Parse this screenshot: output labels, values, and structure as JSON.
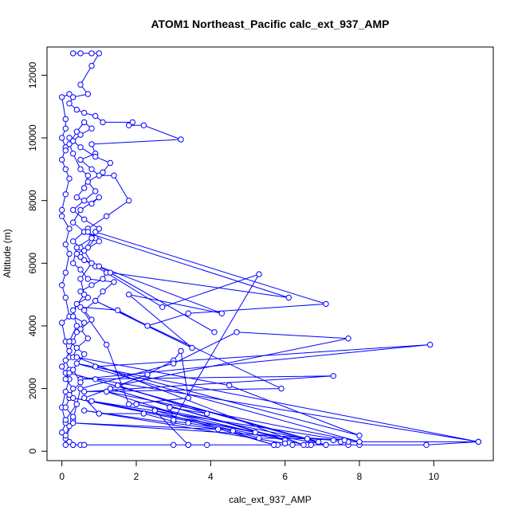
{
  "chart_data": {
    "type": "line",
    "title": "ATOM1 Northeast_Pacific calc_ext_937_AMP",
    "xlabel": "calc_ext_937_AMP",
    "ylabel": "Altitude (m)",
    "xlim": [
      -0.4,
      11.6
    ],
    "ylim": [
      -300,
      12900
    ],
    "xticks": [
      0,
      2,
      4,
      6,
      8,
      10
    ],
    "yticks": [
      0,
      2000,
      4000,
      6000,
      8000,
      10000,
      12000
    ],
    "grid": false,
    "marker": "open-circle",
    "series_color": "#0000ff",
    "series": [
      {
        "points": [
          [
            0.3,
            200
          ],
          [
            0.5,
            200
          ],
          [
            0.6,
            200
          ],
          [
            3.0,
            200
          ],
          [
            3.4,
            200
          ],
          [
            3.9,
            200
          ],
          [
            5.7,
            200
          ],
          [
            5.8,
            200
          ],
          [
            6.2,
            200
          ],
          [
            6.6,
            200
          ],
          [
            6.7,
            200
          ],
          [
            7.1,
            200
          ],
          [
            7.7,
            200
          ],
          [
            8.0,
            200
          ],
          [
            9.8,
            200
          ],
          [
            11.2,
            300
          ],
          [
            7.7,
            300
          ],
          [
            7.5,
            300
          ],
          [
            7.3,
            350
          ],
          [
            6.6,
            400
          ],
          [
            5.3,
            420
          ],
          [
            4.6,
            650
          ],
          [
            3.4,
            900
          ],
          [
            3.0,
            950
          ],
          [
            2.2,
            1200
          ],
          [
            1.0,
            1200
          ],
          [
            0.6,
            1700
          ],
          [
            1.3,
            2000
          ],
          [
            2.3,
            2450
          ],
          [
            3.0,
            2900
          ],
          [
            3.2,
            3200
          ],
          [
            3.4,
            1700
          ],
          [
            1.8,
            1500
          ],
          [
            1.2,
            3400
          ],
          [
            0.5,
            4600
          ],
          [
            1.5,
            4500
          ],
          [
            2.3,
            4000
          ],
          [
            3.4,
            4400
          ],
          [
            7.1,
            4700
          ],
          [
            0.9,
            7000
          ],
          [
            0.5,
            6200
          ],
          [
            2.7,
            4600
          ],
          [
            5.3,
            5650
          ],
          [
            3.0,
            1000
          ],
          [
            2.9,
            1400
          ],
          [
            3.9,
            1200
          ],
          [
            1.5,
            2100
          ],
          [
            7.7,
            3600
          ],
          [
            4.7,
            3800
          ],
          [
            3.0,
            2800
          ],
          [
            0.5,
            2000
          ],
          [
            0.3,
            1000
          ],
          [
            0.1,
            400
          ],
          [
            0.1,
            200
          ]
        ]
      },
      {
        "points": [
          [
            0.0,
            600
          ],
          [
            0.1,
            900
          ],
          [
            0.0,
            1400
          ],
          [
            0.1,
            1900
          ],
          [
            0.2,
            2300
          ],
          [
            0.1,
            2500
          ],
          [
            0.0,
            2700
          ],
          [
            0.2,
            3000
          ],
          [
            0.1,
            3500
          ],
          [
            0.0,
            4100
          ],
          [
            0.2,
            4300
          ],
          [
            0.1,
            4900
          ],
          [
            0.0,
            5300
          ],
          [
            0.1,
            5700
          ],
          [
            0.2,
            6300
          ],
          [
            0.1,
            6600
          ],
          [
            0.2,
            7100
          ],
          [
            0.0,
            7500
          ],
          [
            0.0,
            7700
          ],
          [
            0.1,
            8200
          ],
          [
            0.2,
            8700
          ],
          [
            0.1,
            9000
          ],
          [
            0.0,
            9300
          ],
          [
            0.1,
            9700
          ],
          [
            0.0,
            10000
          ],
          [
            0.1,
            10300
          ],
          [
            0.1,
            10600
          ],
          [
            0.0,
            11300
          ],
          [
            0.2,
            11400
          ]
        ]
      },
      {
        "points": [
          [
            0.3,
            12700
          ],
          [
            0.5,
            12700
          ],
          [
            0.8,
            12700
          ],
          [
            1.0,
            12700
          ],
          [
            0.8,
            12300
          ],
          [
            0.5,
            11700
          ],
          [
            0.7,
            11400
          ],
          [
            0.3,
            11300
          ],
          [
            0.2,
            11100
          ],
          [
            0.4,
            10900
          ],
          [
            0.6,
            10800
          ],
          [
            0.9,
            10700
          ],
          [
            1.1,
            10500
          ],
          [
            1.9,
            10500
          ],
          [
            1.8,
            10400
          ],
          [
            2.2,
            10400
          ],
          [
            3.2,
            9950
          ],
          [
            0.8,
            9800
          ],
          [
            0.9,
            9500
          ],
          [
            0.5,
            9300
          ],
          [
            0.8,
            9000
          ],
          [
            1.0,
            8800
          ],
          [
            1.4,
            8800
          ],
          [
            1.8,
            8000
          ],
          [
            1.2,
            7500
          ],
          [
            0.7,
            7100
          ],
          [
            0.3,
            6700
          ],
          [
            0.5,
            6500
          ]
        ]
      },
      {
        "points": [
          [
            0.1,
            9600
          ],
          [
            0.3,
            9900
          ],
          [
            0.5,
            10100
          ],
          [
            0.8,
            10300
          ],
          [
            0.6,
            10500
          ],
          [
            0.4,
            10200
          ],
          [
            0.2,
            9800
          ],
          [
            0.3,
            9500
          ],
          [
            0.5,
            9000
          ],
          [
            0.7,
            8800
          ],
          [
            0.6,
            8400
          ],
          [
            0.4,
            8100
          ],
          [
            0.8,
            7900
          ],
          [
            1.0,
            8100
          ],
          [
            0.5,
            7700
          ],
          [
            0.3,
            7300
          ],
          [
            0.6,
            7000
          ],
          [
            0.9,
            6800
          ],
          [
            0.7,
            6500
          ],
          [
            0.4,
            6300
          ],
          [
            0.6,
            6100
          ],
          [
            0.9,
            5900
          ],
          [
            1.2,
            5700
          ],
          [
            1.1,
            5500
          ],
          [
            0.8,
            5300
          ],
          [
            0.5,
            5100
          ],
          [
            0.7,
            4900
          ],
          [
            0.4,
            4700
          ],
          [
            0.3,
            4300
          ],
          [
            0.6,
            4100
          ],
          [
            0.4,
            3800
          ],
          [
            0.3,
            3500
          ],
          [
            0.2,
            3200
          ],
          [
            0.1,
            2900
          ],
          [
            0.2,
            2600
          ],
          [
            0.1,
            2300
          ],
          [
            0.3,
            2000
          ],
          [
            0.2,
            1700
          ],
          [
            0.1,
            1400
          ],
          [
            0.3,
            1100
          ],
          [
            0.2,
            800
          ],
          [
            0.1,
            500
          ],
          [
            0.2,
            300
          ],
          [
            0.3,
            200
          ]
        ]
      },
      {
        "points": [
          [
            0.2,
            10000
          ],
          [
            0.5,
            9700
          ],
          [
            0.9,
            9400
          ],
          [
            1.3,
            9200
          ],
          [
            1.1,
            8900
          ],
          [
            0.7,
            8600
          ],
          [
            0.9,
            8300
          ],
          [
            0.6,
            8000
          ],
          [
            0.3,
            7700
          ],
          [
            0.6,
            7400
          ],
          [
            1.0,
            7100
          ],
          [
            0.8,
            6800
          ],
          [
            0.4,
            6500
          ],
          [
            0.3,
            6000
          ],
          [
            0.5,
            5800
          ],
          [
            0.7,
            5500
          ],
          [
            1.4,
            5400
          ],
          [
            1.1,
            5100
          ],
          [
            0.9,
            4800
          ],
          [
            0.6,
            4500
          ],
          [
            0.8,
            4200
          ],
          [
            0.5,
            3900
          ],
          [
            0.7,
            3600
          ],
          [
            0.4,
            3300
          ],
          [
            0.3,
            3000
          ]
        ]
      },
      {
        "points": [
          [
            0.6,
            7000
          ],
          [
            6.1,
            4900
          ],
          [
            1.3,
            5700
          ],
          [
            4.1,
            3800
          ],
          [
            1.0,
            5900
          ],
          [
            4.3,
            4400
          ],
          [
            1.8,
            5000
          ],
          [
            3.5,
            3300
          ],
          [
            0.9,
            4800
          ],
          [
            5.9,
            2000
          ],
          [
            0.6,
            1900
          ],
          [
            7.3,
            2400
          ],
          [
            0.5,
            2300
          ],
          [
            9.9,
            3400
          ],
          [
            0.9,
            2700
          ],
          [
            8.0,
            500
          ],
          [
            4.5,
            2100
          ],
          [
            0.4,
            3000
          ],
          [
            6.5,
            200
          ],
          [
            1.3,
            2000
          ],
          [
            6.0,
            350
          ],
          [
            0.3,
            1700
          ],
          [
            7.1,
            200
          ],
          [
            0.2,
            2500
          ],
          [
            6.9,
            300
          ],
          [
            2.0,
            1500
          ],
          [
            5.2,
            600
          ],
          [
            0.8,
            1600
          ],
          [
            7.6,
            350
          ],
          [
            0.3,
            900
          ],
          [
            4.2,
            700
          ],
          [
            0.6,
            1300
          ],
          [
            6.0,
            250
          ]
        ]
      },
      {
        "points": [
          [
            0.9,
            2300
          ],
          [
            11.2,
            300
          ],
          [
            0.4,
            2800
          ],
          [
            8.0,
            300
          ],
          [
            1.2,
            1900
          ],
          [
            5.7,
            200
          ],
          [
            2.5,
            1300
          ],
          [
            3.4,
            200
          ]
        ]
      },
      {
        "points": [
          [
            0.1,
            1000
          ],
          [
            0.4,
            1500
          ],
          [
            0.2,
            1800
          ],
          [
            0.5,
            2200
          ],
          [
            0.3,
            2600
          ],
          [
            0.6,
            3100
          ],
          [
            0.2,
            3500
          ],
          [
            0.4,
            4000
          ],
          [
            0.3,
            4500
          ],
          [
            0.6,
            5000
          ],
          [
            0.5,
            5500
          ],
          [
            0.8,
            6000
          ],
          [
            0.6,
            6400
          ],
          [
            1.0,
            6700
          ],
          [
            0.7,
            7000
          ]
        ]
      }
    ]
  }
}
